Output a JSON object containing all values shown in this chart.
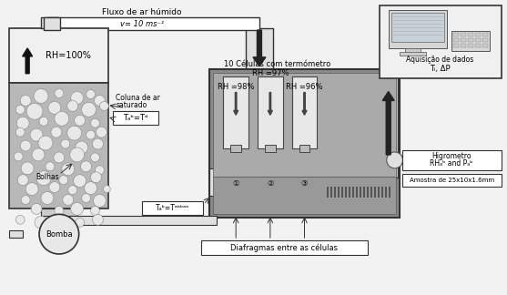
{
  "bg_color": "#f2f2f2",
  "labels": {
    "fluxo": "Fluxo de ar húmido",
    "velocity": "v= 10 ms⁻¹",
    "rh100": "RH=100%",
    "coluna1": "Coluna de ar",
    "coluna2": "saturado",
    "twb_td": "Tₐᵇ=Tᵈ",
    "bolhas": "Bolhas",
    "bomba": "Bomba",
    "twb_tamb": "Tₐᵇ=Tᵃᵃᵇᵃᵃ",
    "celulas": "10 Células com termómetro",
    "rh97": "RH =97%",
    "rh98": "RH =98%",
    "rh96": "RH =96%",
    "higrometro1": "Higrometro",
    "higrometro2": "RHₐᵇ and Pₐᵇ",
    "amostra": "Amostra de 25x10x1.6mm",
    "diafragmas": "Diafragmas entre as células",
    "aquisicao1": "Aquisição de dados",
    "aquisicao2": "Tᵢ, ΔP"
  }
}
